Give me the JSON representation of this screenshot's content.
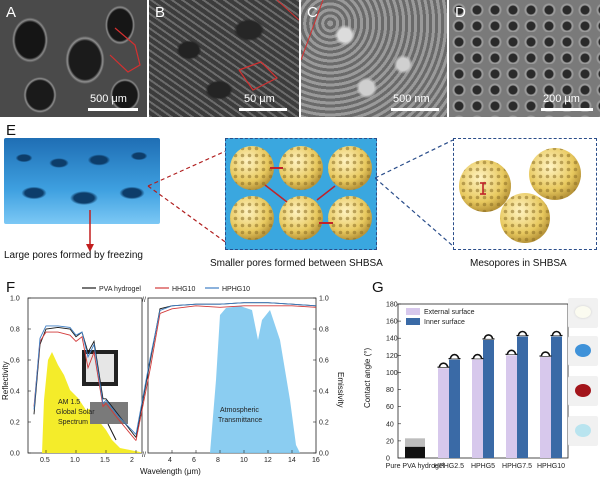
{
  "panels": {
    "A": {
      "letter": "A",
      "scale": "500 μm"
    },
    "B": {
      "letter": "B",
      "scale": "50 μm"
    },
    "C": {
      "letter": "C",
      "scale": "500 nm"
    },
    "D": {
      "letter": "D",
      "scale": "200 μm"
    },
    "E": {
      "letter": "E",
      "caption_left": "Large pores formed by freezing",
      "caption_mid": "Smaller pores formed between SHBSA",
      "caption_right": "Mesopores in SHBSA"
    },
    "F": {
      "letter": "F"
    },
    "G": {
      "letter": "G"
    }
  },
  "colors": {
    "pva": "#1a1a1a",
    "hhg": "#d23a3a",
    "hphg": "#3f7fc4",
    "solar": "#f4ec2a",
    "atmos": "#7ec8ef",
    "bar_ext": "#d7c8ec",
    "bar_int": "#3a6aa6"
  },
  "chart_data": [
    {
      "type": "line",
      "legend": [
        "PVA hydrogel",
        "HHG10",
        "HPHG10"
      ],
      "xlabel": "Wavelength (μm)",
      "ylabel_left": "Reflectivity",
      "ylabel_right": "Emissivity",
      "xticks_left": [
        "0.5",
        "1.0",
        "1.5",
        "2"
      ],
      "xticks_right": [
        "4",
        "6",
        "8",
        "10",
        "12",
        "14",
        "16"
      ],
      "yticks_left": [
        "0.0",
        "0.2",
        "0.4",
        "0.6",
        "0.8",
        "1.0"
      ],
      "yticks_right": [
        "0.0",
        "0.2",
        "0.4",
        "0.6",
        "0.8",
        "1.0"
      ],
      "annotation_solar": [
        "AM 1.5",
        "Global Solar",
        "Spectrum"
      ],
      "annotation_atmos": [
        "Atmospheric",
        "Transmittance"
      ],
      "series": [
        {
          "name": "PVA hydrogel",
          "x": [
            0.3,
            0.4,
            0.5,
            0.7,
            0.9,
            1.0,
            1.1,
            1.2,
            1.3,
            1.45,
            1.5,
            1.7,
            2.0,
            2.2,
            3.0,
            4.0,
            6.0,
            8.0,
            10.0,
            12.0,
            14.0,
            16.0
          ],
          "y": [
            0.25,
            0.7,
            0.8,
            0.81,
            0.8,
            0.75,
            0.78,
            0.65,
            0.72,
            0.35,
            0.35,
            0.25,
            0.1,
            0.6,
            0.93,
            0.95,
            0.96,
            0.96,
            0.97,
            0.97,
            0.96,
            0.95
          ]
        },
        {
          "name": "HHG10",
          "x": [
            0.3,
            0.4,
            0.5,
            0.7,
            0.9,
            1.0,
            1.1,
            1.2,
            1.3,
            1.45,
            1.5,
            1.7,
            2.0,
            2.2,
            3.0,
            4.0,
            6.0,
            8.0,
            10.0,
            12.0,
            14.0,
            16.0
          ],
          "y": [
            0.3,
            0.72,
            0.78,
            0.78,
            0.76,
            0.72,
            0.75,
            0.55,
            0.65,
            0.3,
            0.32,
            0.22,
            0.08,
            0.55,
            0.9,
            0.93,
            0.95,
            0.94,
            0.95,
            0.95,
            0.95,
            0.94
          ]
        },
        {
          "name": "HPHG10",
          "x": [
            0.3,
            0.4,
            0.5,
            0.7,
            0.9,
            1.0,
            1.1,
            1.2,
            1.3,
            1.45,
            1.5,
            1.7,
            2.0,
            2.2,
            3.0,
            4.0,
            6.0,
            8.0,
            10.0,
            12.0,
            14.0,
            16.0
          ],
          "y": [
            0.28,
            0.74,
            0.82,
            0.82,
            0.81,
            0.76,
            0.78,
            0.62,
            0.7,
            0.32,
            0.34,
            0.24,
            0.12,
            0.62,
            0.92,
            0.95,
            0.96,
            0.96,
            0.97,
            0.97,
            0.96,
            0.95
          ]
        }
      ]
    },
    {
      "type": "bar",
      "ylabel": "Contact angle (°)",
      "ylim": [
        0,
        180
      ],
      "yticks": [
        "0",
        "20",
        "40",
        "60",
        "80",
        "100",
        "120",
        "140",
        "160",
        "180"
      ],
      "categories": [
        "Pure PVA hydrogel",
        "HPHG2.5",
        "HPHG5",
        "HPHG7.5",
        "HPHG10"
      ],
      "series": [
        {
          "name": "External surface",
          "values": [
            13,
            105,
            115,
            120,
            118
          ]
        },
        {
          "name": "Inner surface",
          "values": [
            10,
            115,
            138,
            142,
            142
          ]
        }
      ],
      "legend_position": "top-left",
      "pure_pva_bar": {
        "value": 23
      }
    }
  ]
}
